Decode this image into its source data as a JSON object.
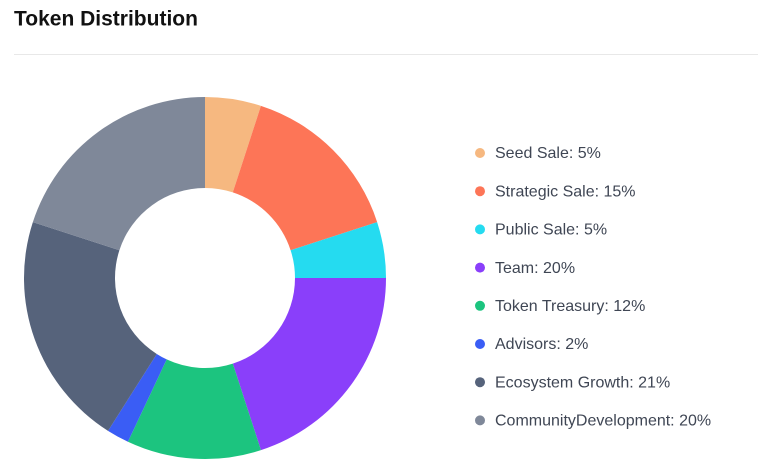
{
  "chart_data": {
    "type": "donut",
    "title": "Token Distribution",
    "categories": [
      "Seed Sale: 5%",
      "Strategic Sale: 15%",
      "Public Sale: 5%",
      "Team: 20%",
      "Token Treasury: 12%",
      "Advisors: 2%",
      "Ecosystem Growth: 21%",
      "CommunityDevelopment: 20%"
    ],
    "values": [
      5,
      15,
      5,
      20,
      12,
      2,
      21,
      20
    ],
    "colors": [
      "#f6b880",
      "#fd7557",
      "#25dbf0",
      "#8a3ffa",
      "#1cc47f",
      "#3a5df5",
      "#56637b",
      "#7f8899"
    ],
    "legend": "right"
  }
}
